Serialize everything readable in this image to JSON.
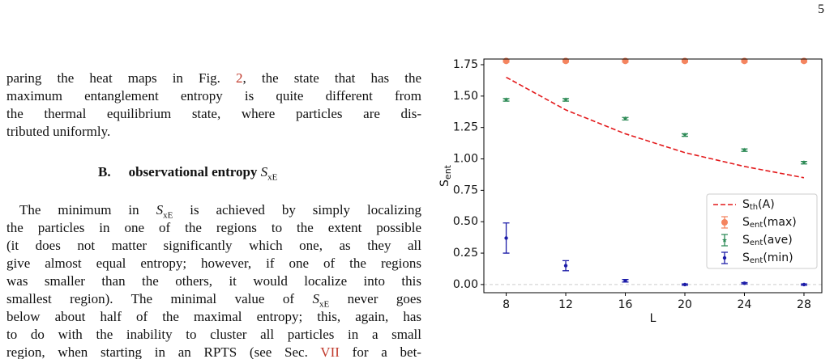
{
  "page_number": "5",
  "link_color": "#c0392b",
  "paragraphs": [
    {
      "lines": [
        [
          "paring the heat maps in Fig. ",
          {
            "link": "2"
          },
          ", the state that has the"
        ],
        [
          "maximum entanglement entropy is quite different from"
        ],
        [
          "the thermal equilibrium state, where particles are dis-"
        ],
        [
          "tributed uniformly."
        ]
      ]
    },
    {
      "lines": [
        [
          "The minimum in ",
          {
            "math": "S",
            "sub": "xE"
          },
          " is achieved by simply localizing"
        ],
        [
          "the particles in one of the regions to the extent possible"
        ],
        [
          "(it does not matter significantly which one, as they all"
        ],
        [
          "give almost equal entropy; however, if one of the regions"
        ],
        [
          "was smaller than the others, it would localize into this"
        ],
        [
          "smallest region). The minimal value of ",
          {
            "math": "S",
            "sub": "xE"
          },
          " never goes"
        ],
        [
          "below about half of the maximal entropy; this, again, has"
        ],
        [
          "to do with the inability to cluster all particles in a small"
        ],
        [
          "region, when starting in an RPTS (see Sec. ",
          {
            "link": "VII"
          },
          " for a bet-"
        ]
      ]
    }
  ],
  "heading": [
    "B.",
    "observational entropy ",
    {
      "math": "S",
      "sub": "xE"
    }
  ],
  "chart_data": {
    "type": "errorbar",
    "x_label": "L",
    "y_label": {
      "text": "S",
      "sub": "ent"
    },
    "x": [
      8,
      12,
      16,
      20,
      24,
      28
    ],
    "xlim": [
      6.5,
      29.2
    ],
    "ylim": [
      -0.065,
      1.795
    ],
    "xticks": [
      8,
      12,
      16,
      20,
      24,
      28
    ],
    "yticks": [
      {
        "value": 0,
        "label": "0.00"
      },
      {
        "value": 0.25,
        "label": "0.25"
      },
      {
        "value": 0.5,
        "label": "0.50"
      },
      {
        "value": 0.75,
        "label": "0.75"
      },
      {
        "value": 1,
        "label": "1.00"
      },
      {
        "value": 1.25,
        "label": "1.25"
      },
      {
        "value": 1.5,
        "label": "1.50"
      },
      {
        "value": 1.75,
        "label": "1.75"
      }
    ],
    "legend": "lower right",
    "series": [
      {
        "name": {
          "text": "S",
          "sub": "th",
          "rest": "(A)"
        },
        "kind": "dashed-line",
        "color": "#e31a1c",
        "values": [
          1.65,
          1.39,
          1.2,
          1.05,
          0.94,
          0.85
        ]
      },
      {
        "name": {
          "text": "S",
          "sub": "ent",
          "rest": "(max)"
        },
        "kind": "circle",
        "color": "#f4845f",
        "values": [
          1.78,
          1.78,
          1.78,
          1.78,
          1.78,
          1.78
        ],
        "errors": [
          0.01,
          0.01,
          0.01,
          0.01,
          0.01,
          0.01
        ]
      },
      {
        "name": {
          "text": "S",
          "sub": "ent",
          "rest": "(ave)"
        },
        "kind": "star",
        "color": "#2e8b57",
        "values": [
          1.47,
          1.47,
          1.32,
          1.19,
          1.07,
          0.97
        ],
        "errors": [
          0.01,
          0.01,
          0.01,
          0.01,
          0.01,
          0.01
        ]
      },
      {
        "name": {
          "text": "S",
          "sub": "ent",
          "rest": "(min)"
        },
        "kind": "dot",
        "color": "#1c1ca8",
        "values": [
          0.37,
          0.15,
          0.03,
          0.0,
          0.01,
          0.0
        ],
        "errors": [
          0.12,
          0.04,
          0.01,
          0.005,
          0.005,
          0.005
        ]
      }
    ]
  }
}
